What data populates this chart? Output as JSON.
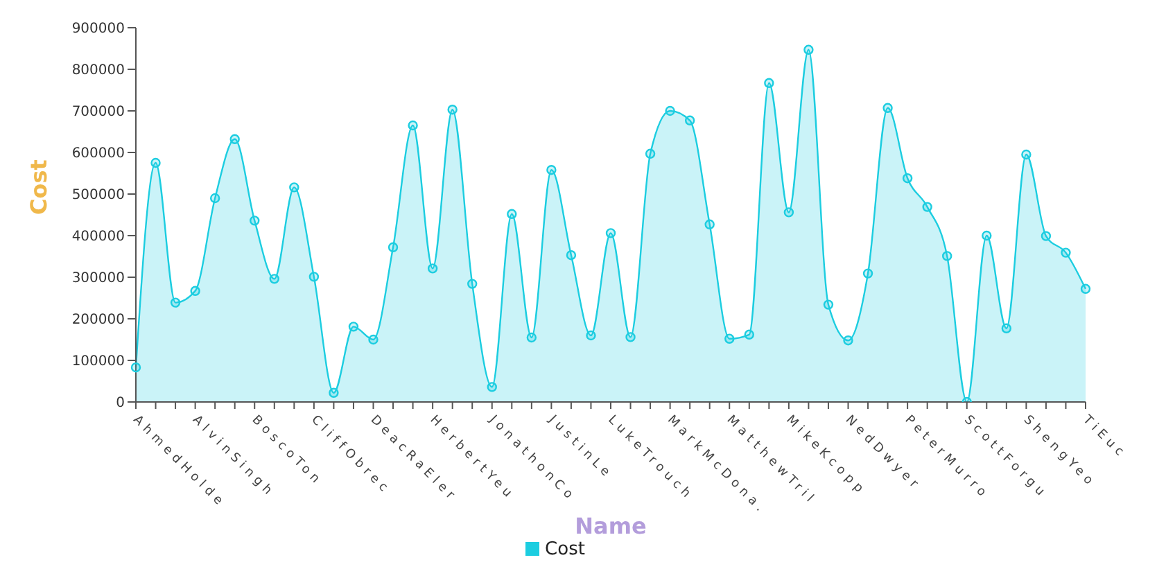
{
  "chart_data": {
    "type": "area",
    "xlabel": "Name",
    "ylabel": "Cost",
    "categories": [
      "AhmedHolde",
      null,
      null,
      "AlvinSingh",
      null,
      null,
      "BoscoTon",
      null,
      null,
      "CliffObrec",
      null,
      null,
      "DeacRaEler",
      null,
      null,
      "HerbertYeu",
      null,
      null,
      "JonathonCo",
      null,
      null,
      "JustinLe",
      null,
      null,
      "LukeTrouch",
      null,
      null,
      "MarkMcDona.",
      null,
      null,
      "MatthewTril",
      null,
      null,
      "MikeKcopp",
      null,
      null,
      "NedDwyer",
      null,
      null,
      "PeterMurro",
      null,
      null,
      "ScottForgu",
      null,
      null,
      "ShengYeo",
      null,
      null,
      "TiEuc"
    ],
    "series": [
      {
        "name": "Cost",
        "color": "#1ccde0",
        "values": [
          83000,
          575000,
          239000,
          267000,
          490000,
          632000,
          436000,
          296000,
          516000,
          301000,
          22000,
          181000,
          150000,
          372000,
          665000,
          321000,
          703000,
          284000,
          36000,
          452000,
          155000,
          558000,
          353000,
          160000,
          406000,
          156000,
          597000,
          700000,
          677000,
          427000,
          152000,
          162000,
          767000,
          456000,
          847000,
          234000,
          148000,
          309000,
          707000,
          538000,
          469000,
          351000,
          0,
          400000,
          177000,
          595000,
          399000,
          359000,
          272000
        ]
      }
    ],
    "ylim": [
      0,
      900000
    ],
    "yticks": [
      0,
      100000,
      200000,
      300000,
      400000,
      500000,
      600000,
      700000,
      800000,
      900000
    ],
    "grid": false,
    "legend": "bottom",
    "marker": "circle",
    "line_style": "solid"
  }
}
